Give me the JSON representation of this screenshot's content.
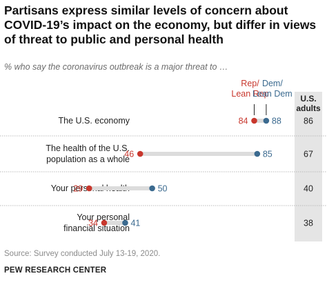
{
  "title": "Partisans express similar levels of concern about COVID-19’s impact on the economy, but differ in views of threat to public and personal health",
  "subtitle": "% who say the coronavirus outbreak is a major threat to …",
  "source": "Source: Survey conducted July 13-19, 2020.",
  "organization": "PEW RESEARCH CENTER",
  "colors": {
    "rep": "#c8372d",
    "dem": "#3b6a8f",
    "track": "#dcdcdc",
    "adults_column": "#e5e5e5",
    "divider": "#bbbbbb"
  },
  "chart_data": {
    "type": "dot",
    "categories": [
      [
        "The U.S. economy"
      ],
      [
        "The health of the U.S.",
        "population as a whole"
      ],
      [
        "Your personal health"
      ],
      [
        "Your personal",
        "financial situation"
      ]
    ],
    "series": [
      {
        "name": "Rep/ Lean Rep",
        "legend_lines": [
          "Rep/",
          "Lean Rep"
        ],
        "values": [
          84,
          46,
          29,
          34
        ]
      },
      {
        "name": "Dem/ Lean Dem",
        "legend_lines": [
          "Dem/",
          "Lean Dem"
        ],
        "values": [
          88,
          85,
          50,
          41
        ]
      }
    ],
    "us_adults": {
      "header_lines": [
        "U.S.",
        "adults"
      ],
      "values": [
        86,
        67,
        40,
        38
      ]
    },
    "xlim": [
      0,
      100
    ]
  }
}
